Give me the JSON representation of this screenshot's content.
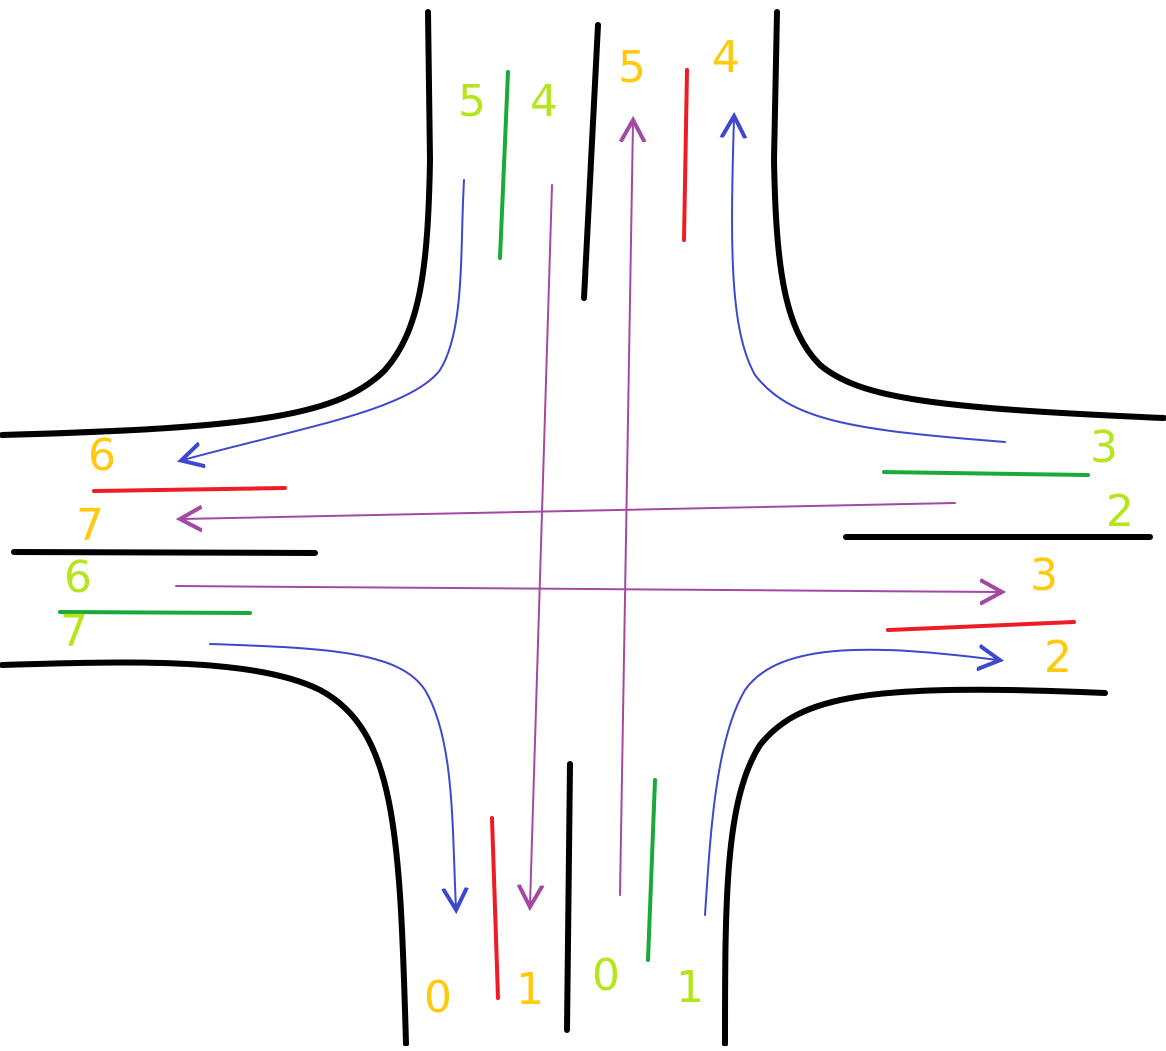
{
  "colors": {
    "road": "#000000",
    "green_marker": "#1aaa3a",
    "red_marker": "#ee1c24",
    "straight_arrow": "#a349a4",
    "turn_arrow": "#3f48cc",
    "label_yellow_green": "#b5e61d",
    "label_orange": "#ffc90e"
  },
  "labels": {
    "top_left_5": "5",
    "top_left_4": "4",
    "top_right_5": "5",
    "top_right_4": "4",
    "right_top_3": "3",
    "right_top_2": "2",
    "right_bottom_3": "3",
    "right_bottom_2": "2",
    "left_top_6": "6",
    "left_top_7": "7",
    "left_bottom_6": "6",
    "left_bottom_7": "7",
    "bottom_left_0": "0",
    "bottom_left_1": "1",
    "bottom_right_0": "0",
    "bottom_right_1": "1"
  }
}
